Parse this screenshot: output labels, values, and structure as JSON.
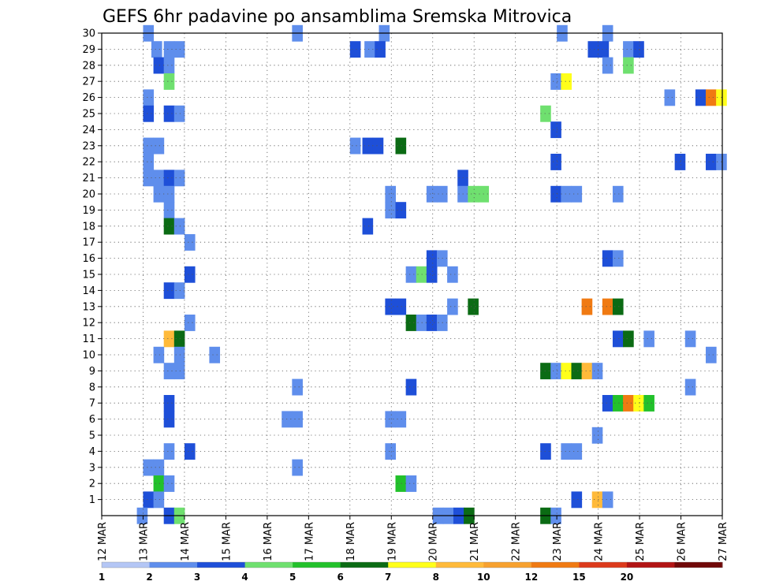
{
  "chart_data": {
    "type": "heatmap",
    "title": "GEFS 6hr padavine po ansamblima Sremska Mitrovica",
    "xlabel": "",
    "ylabel": "",
    "x_start_day": 12,
    "x_end_day": 27,
    "x_ticks": [
      "12 MAR",
      "13 MAR",
      "14 MAR",
      "15 MAR",
      "16 MAR",
      "17 MAR",
      "18 MAR",
      "19 MAR",
      "20 MAR",
      "21 MAR",
      "22 MAR",
      "23 MAR",
      "24 MAR",
      "25 MAR",
      "26 MAR",
      "27 MAR"
    ],
    "y_ticks": [
      "1",
      "2",
      "3",
      "4",
      "5",
      "6",
      "7",
      "8",
      "9",
      "10",
      "11",
      "12",
      "13",
      "14",
      "15",
      "16",
      "17",
      "18",
      "19",
      "20",
      "21",
      "22",
      "23",
      "24",
      "25",
      "26",
      "27",
      "28",
      "29",
      "30"
    ],
    "ylim": [
      0,
      30
    ],
    "grid": true,
    "colorbar": {
      "labels": [
        "1",
        "2",
        "3",
        "4",
        "5",
        "6",
        "7",
        "8",
        "10",
        "12",
        "15",
        "20"
      ],
      "colors": [
        "#b4c6f5",
        "#5f8eec",
        "#1e4fd8",
        "#6fe06f",
        "#22c12b",
        "#0b6b14",
        "#ffff1a",
        "#ffba3a",
        "#f7a12f",
        "#f07a12",
        "#dc3a1b",
        "#b21414",
        "#700808"
      ]
    },
    "cells": [
      [
        30,
        13.0,
        1
      ],
      [
        30,
        16.6,
        1
      ],
      [
        30,
        18.7,
        1
      ],
      [
        30,
        23.0,
        1
      ],
      [
        30,
        24.1,
        1
      ],
      [
        29,
        13.2,
        1
      ],
      [
        29,
        13.5,
        1
      ],
      [
        29,
        13.75,
        1
      ],
      [
        29,
        18.0,
        2
      ],
      [
        29,
        18.35,
        1
      ],
      [
        29,
        18.6,
        2
      ],
      [
        29,
        23.75,
        2
      ],
      [
        29,
        24.0,
        2
      ],
      [
        29,
        24.6,
        1
      ],
      [
        29,
        24.85,
        2
      ],
      [
        28,
        13.25,
        2
      ],
      [
        28,
        13.5,
        1
      ],
      [
        28,
        24.1,
        1
      ],
      [
        28,
        24.6,
        3
      ],
      [
        27,
        13.5,
        3
      ],
      [
        27,
        22.85,
        1
      ],
      [
        27,
        23.1,
        6
      ],
      [
        26,
        13.0,
        1
      ],
      [
        26,
        25.6,
        1
      ],
      [
        26,
        26.35,
        2
      ],
      [
        26,
        26.6,
        9
      ],
      [
        26,
        26.85,
        6
      ],
      [
        25,
        13.0,
        2
      ],
      [
        25,
        13.5,
        2
      ],
      [
        25,
        13.75,
        1
      ],
      [
        25,
        22.6,
        3
      ],
      [
        24,
        22.85,
        2
      ],
      [
        23,
        13.0,
        1
      ],
      [
        23,
        13.25,
        1
      ],
      [
        23,
        18.0,
        1
      ],
      [
        23,
        18.3,
        2
      ],
      [
        23,
        18.55,
        2
      ],
      [
        23,
        19.1,
        5
      ],
      [
        22,
        13.0,
        1
      ],
      [
        22,
        22.85,
        2
      ],
      [
        22,
        25.85,
        2
      ],
      [
        22,
        26.6,
        2
      ],
      [
        22,
        26.85,
        1
      ],
      [
        21,
        13.0,
        1
      ],
      [
        21,
        13.25,
        1
      ],
      [
        21,
        13.5,
        2
      ],
      [
        21,
        13.75,
        1
      ],
      [
        21,
        20.6,
        2
      ],
      [
        20,
        13.25,
        1
      ],
      [
        20,
        13.5,
        1
      ],
      [
        20,
        18.85,
        1
      ],
      [
        20,
        19.85,
        1
      ],
      [
        20,
        20.1,
        1
      ],
      [
        20,
        20.6,
        1
      ],
      [
        20,
        20.85,
        3
      ],
      [
        20,
        21.1,
        3
      ],
      [
        20,
        22.85,
        2
      ],
      [
        20,
        23.1,
        1
      ],
      [
        20,
        23.35,
        1
      ],
      [
        20,
        24.35,
        1
      ],
      [
        19,
        13.5,
        1
      ],
      [
        19,
        18.85,
        1
      ],
      [
        19,
        19.1,
        2
      ],
      [
        18,
        13.5,
        5
      ],
      [
        18,
        13.75,
        1
      ],
      [
        18,
        18.3,
        2
      ],
      [
        17,
        14.0,
        1
      ],
      [
        16,
        19.85,
        2
      ],
      [
        16,
        20.1,
        1
      ],
      [
        16,
        24.1,
        2
      ],
      [
        16,
        24.35,
        1
      ],
      [
        15,
        14.0,
        2
      ],
      [
        15,
        19.35,
        1
      ],
      [
        15,
        19.6,
        3
      ],
      [
        15,
        19.85,
        2
      ],
      [
        15,
        20.35,
        1
      ],
      [
        14,
        13.5,
        2
      ],
      [
        14,
        13.75,
        1
      ],
      [
        13,
        18.85,
        2
      ],
      [
        13,
        19.1,
        2
      ],
      [
        13,
        20.35,
        1
      ],
      [
        13,
        20.85,
        5
      ],
      [
        13,
        23.6,
        9
      ],
      [
        13,
        24.1,
        9
      ],
      [
        13,
        24.35,
        5
      ],
      [
        12,
        14.0,
        1
      ],
      [
        12,
        19.35,
        5
      ],
      [
        12,
        19.6,
        1
      ],
      [
        12,
        19.85,
        2
      ],
      [
        12,
        20.1,
        1
      ],
      [
        11,
        13.5,
        7
      ],
      [
        11,
        13.75,
        5
      ],
      [
        11,
        24.35,
        2
      ],
      [
        11,
        24.6,
        5
      ],
      [
        11,
        25.1,
        1
      ],
      [
        11,
        26.1,
        1
      ],
      [
        10,
        13.25,
        1
      ],
      [
        10,
        13.75,
        1
      ],
      [
        10,
        14.6,
        1
      ],
      [
        10,
        26.6,
        1
      ],
      [
        9,
        13.5,
        1
      ],
      [
        9,
        13.75,
        1
      ],
      [
        9,
        22.6,
        5
      ],
      [
        9,
        22.85,
        1
      ],
      [
        9,
        23.1,
        6
      ],
      [
        9,
        23.35,
        5
      ],
      [
        9,
        23.6,
        7
      ],
      [
        9,
        23.85,
        1
      ],
      [
        8,
        16.6,
        1
      ],
      [
        8,
        19.35,
        2
      ],
      [
        8,
        26.1,
        1
      ],
      [
        7,
        13.5,
        2
      ],
      [
        7,
        24.1,
        2
      ],
      [
        7,
        24.35,
        4
      ],
      [
        7,
        24.6,
        9
      ],
      [
        7,
        24.85,
        6
      ],
      [
        7,
        25.1,
        4
      ],
      [
        6,
        13.5,
        2
      ],
      [
        6,
        16.35,
        1
      ],
      [
        6,
        16.6,
        1
      ],
      [
        6,
        18.85,
        1
      ],
      [
        6,
        19.1,
        1
      ],
      [
        5,
        23.85,
        1
      ],
      [
        4,
        13.5,
        1
      ],
      [
        4,
        14.0,
        2
      ],
      [
        4,
        18.85,
        1
      ],
      [
        4,
        22.6,
        2
      ],
      [
        4,
        23.1,
        1
      ],
      [
        4,
        23.35,
        1
      ],
      [
        3,
        13.0,
        1
      ],
      [
        3,
        13.25,
        1
      ],
      [
        3,
        16.6,
        1
      ],
      [
        2,
        13.25,
        4
      ],
      [
        2,
        13.5,
        1
      ],
      [
        2,
        19.1,
        4
      ],
      [
        2,
        19.35,
        1
      ],
      [
        1,
        13.0,
        2
      ],
      [
        1,
        13.25,
        1
      ],
      [
        1,
        23.35,
        2
      ],
      [
        1,
        23.85,
        7
      ],
      [
        1,
        24.1,
        1
      ],
      [
        0,
        12.85,
        1
      ],
      [
        0,
        13.5,
        2
      ],
      [
        0,
        13.75,
        3
      ],
      [
        0,
        20.0,
        1
      ],
      [
        0,
        20.25,
        1
      ],
      [
        0,
        20.5,
        2
      ],
      [
        0,
        20.75,
        5
      ],
      [
        0,
        22.6,
        5
      ],
      [
        0,
        22.85,
        1
      ]
    ]
  }
}
